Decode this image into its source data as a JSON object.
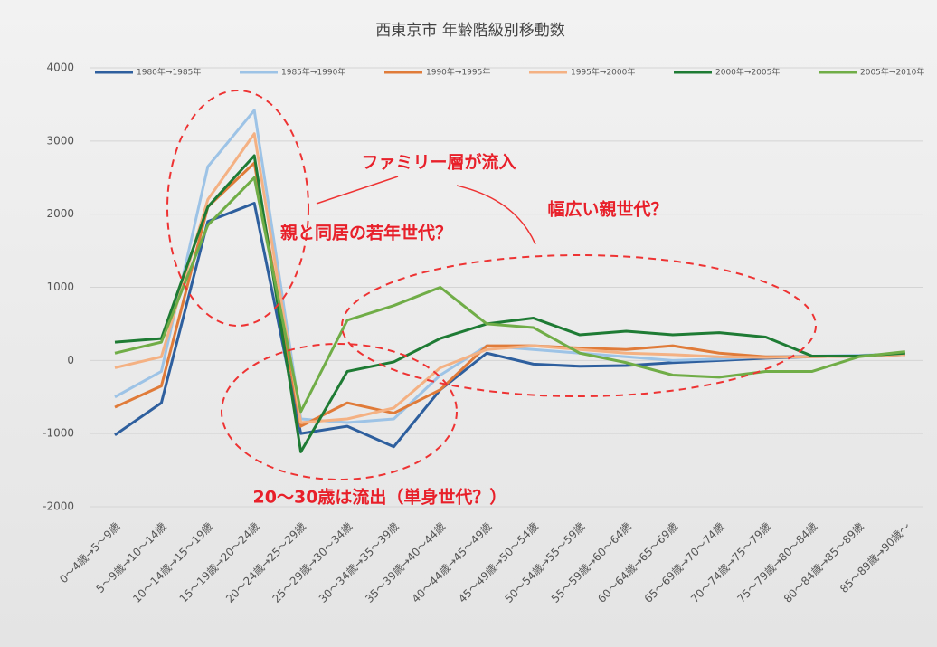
{
  "chart_data": {
    "type": "line",
    "title": "西東京市 年齢階級別移動数",
    "categories": [
      "0～4歳→5～9歳",
      "5～9歳→10～14歳",
      "10～14歳→15～19歳",
      "15～19歳→20～24歳",
      "20～24歳→25～29歳",
      "25～29歳→30～34歳",
      "30～34歳→35～39歳",
      "35～39歳→40～44歳",
      "40～44歳→45～49歳",
      "45～49歳→50～54歳",
      "50～54歳→55～59歳",
      "55～59歳→60～64歳",
      "60～64歳→65～69歳",
      "65～69歳→70～74歳",
      "70～74歳→75～79歳",
      "75～79歳→80～84歳",
      "80～84歳→85～89歳",
      "85～89歳→90歳～"
    ],
    "series": [
      {
        "name": "1980年→1985年",
        "color": "#2e5f9e",
        "values": [
          -1020,
          -580,
          1900,
          2150,
          -1000,
          -900,
          -1180,
          -400,
          100,
          -50,
          -80,
          -70,
          -30,
          0,
          30,
          50,
          60,
          80
        ]
      },
      {
        "name": "1985年→1990年",
        "color": "#9dc3e6",
        "values": [
          -500,
          -150,
          2650,
          3420,
          -800,
          -850,
          -800,
          -200,
          200,
          150,
          100,
          50,
          0,
          20,
          50,
          60,
          70,
          90
        ]
      },
      {
        "name": "1990年→1995年",
        "color": "#e07b39",
        "values": [
          -640,
          -350,
          2100,
          2700,
          -900,
          -580,
          -720,
          -400,
          200,
          200,
          170,
          150,
          200,
          100,
          50,
          50,
          60,
          80
        ]
      },
      {
        "name": "1995年→2000年",
        "color": "#f4b183",
        "values": [
          -100,
          50,
          2200,
          3100,
          -850,
          -800,
          -650,
          -100,
          150,
          200,
          150,
          100,
          80,
          50,
          40,
          50,
          60,
          80
        ]
      },
      {
        "name": "2000年→2005年",
        "color": "#1e7b34",
        "values": [
          250,
          300,
          2100,
          2800,
          -1250,
          -150,
          -20,
          300,
          500,
          580,
          350,
          400,
          350,
          380,
          320,
          60,
          60,
          100
        ]
      },
      {
        "name": "2005年→2010年",
        "color": "#70ad47",
        "values": [
          100,
          250,
          1850,
          2500,
          -700,
          550,
          750,
          1000,
          500,
          450,
          100,
          -30,
          -200,
          -230,
          -150,
          -150,
          50,
          120
        ]
      }
    ],
    "ylim": [
      -2000,
      4000
    ],
    "yticks": [
      -2000,
      -1000,
      0,
      1000,
      2000,
      3000,
      4000
    ],
    "grid": true,
    "legend": "top",
    "annotations": [
      "ファミリー層が流入",
      "幅広い親世代？",
      "親と同居の若年世代？",
      "20～30歳は流出（単身世代？）"
    ]
  }
}
